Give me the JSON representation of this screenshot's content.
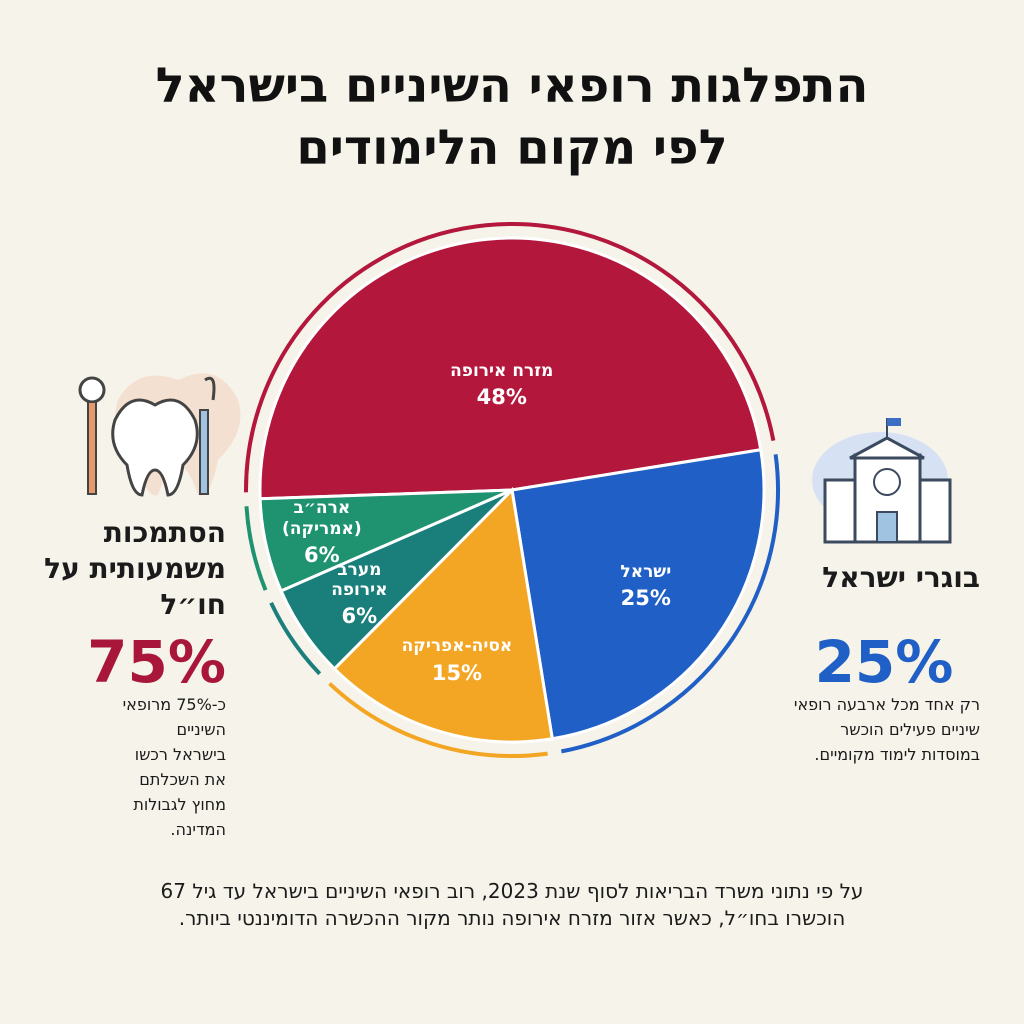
{
  "chart_data": {
    "type": "pie",
    "title": "התפלגות רופאי השיניים בישראל\nלפי מקום הלימודים",
    "categories": [
      "מזרח אירופה",
      "ישראל",
      "אסיה-אפריקה",
      "מערב אירופה",
      "ארה״ב (אמריקה)"
    ],
    "values": [
      48,
      25,
      15,
      6,
      6
    ],
    "value_labels": [
      "48%",
      "25%",
      "15%",
      "6%",
      "6%"
    ],
    "colors": [
      "#b3173b",
      "#1f5fc6",
      "#f3a524",
      "#1a7f7b",
      "#1f9370"
    ]
  },
  "left_panel": {
    "title": "הסתמכות משמעותית על חו״ל",
    "stat": "75%",
    "text": "כ-75% מרופאי השיניים בישראל רכשו את השכלתם מחוץ לגבולות המדינה."
  },
  "right_panel": {
    "title": "בוגרי ישראל",
    "stat": "25%",
    "text": "רק אחד מכל ארבעה רופאי שיניים פעילים הוכשר במוסדות לימוד מקומיים."
  },
  "footnote": "על פי נתוני משרד הבריאות לסוף שנת 2023, רוב רופאי השיניים בישראל עד גיל 67 הוכשרו בחו״ל, כאשר אזור מזרח אירופה נותר מקור ההכשרה הדומיננטי ביותר."
}
